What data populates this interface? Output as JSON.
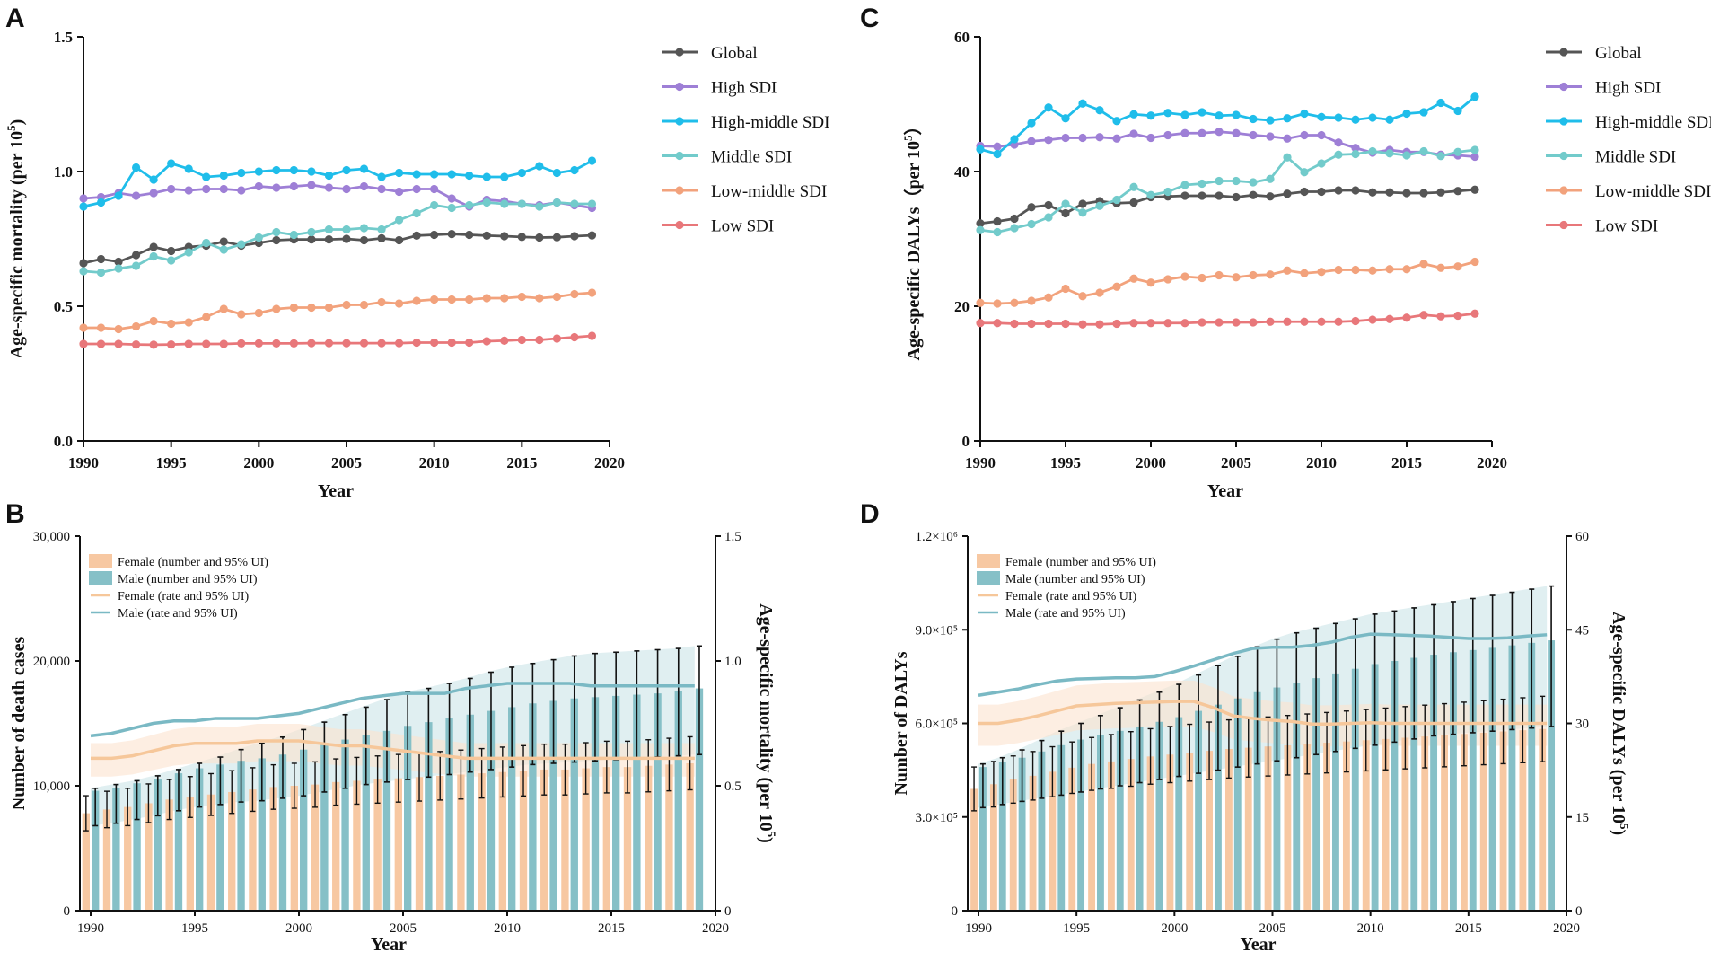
{
  "colors": {
    "Global": "#555555",
    "High SDI": "#9e7fd6",
    "High-middle SDI": "#1fbdea",
    "Middle SDI": "#72cbcb",
    "Low-middle SDI": "#f2a27c",
    "Low SDI": "#e8777a",
    "female_bar": "#f7c8a2",
    "male_bar": "#86c0c7",
    "female_line": "#f6c79a",
    "male_line": "#7ab9c4",
    "female_band": "#fbe3cf",
    "male_band": "#cfe6ea"
  },
  "chart_data": [
    {
      "panel": "A",
      "type": "line",
      "xlabel": "Year",
      "ylabel": "Age-specific mortality (per 10",
      "ylabel_sup": "5",
      "ylabel_tail": ")",
      "xlim": [
        1990,
        2020
      ],
      "ylim": [
        0,
        1.5
      ],
      "x_ticks": [
        "1990",
        "1995",
        "2000",
        "2005",
        "2010",
        "2015",
        "2020"
      ],
      "y_ticks": [
        "0.0",
        "0.5",
        "1.0",
        "1.5"
      ],
      "x": [
        1990,
        1991,
        1992,
        1993,
        1994,
        1995,
        1996,
        1997,
        1998,
        1999,
        2000,
        2001,
        2002,
        2003,
        2004,
        2005,
        2006,
        2007,
        2008,
        2009,
        2010,
        2011,
        2012,
        2013,
        2014,
        2015,
        2016,
        2017,
        2018,
        2019
      ],
      "series": [
        {
          "name": "Global",
          "values": [
            0.66,
            0.675,
            0.665,
            0.69,
            0.72,
            0.705,
            0.72,
            0.725,
            0.74,
            0.725,
            0.735,
            0.745,
            0.748,
            0.748,
            0.748,
            0.75,
            0.745,
            0.752,
            0.745,
            0.762,
            0.765,
            0.768,
            0.765,
            0.762,
            0.76,
            0.757,
            0.755,
            0.756,
            0.76,
            0.763
          ]
        },
        {
          "name": "High SDI",
          "values": [
            0.9,
            0.905,
            0.92,
            0.91,
            0.92,
            0.935,
            0.93,
            0.935,
            0.935,
            0.93,
            0.945,
            0.94,
            0.945,
            0.95,
            0.94,
            0.935,
            0.945,
            0.935,
            0.925,
            0.935,
            0.935,
            0.9,
            0.87,
            0.895,
            0.89,
            0.88,
            0.875,
            0.885,
            0.875,
            0.865
          ]
        },
        {
          "name": "High-middle SDI",
          "values": [
            0.87,
            0.885,
            0.91,
            1.015,
            0.97,
            1.03,
            1.01,
            0.98,
            0.985,
            0.995,
            1.0,
            1.005,
            1.005,
            1.0,
            0.985,
            1.005,
            1.01,
            0.98,
            0.995,
            0.99,
            0.99,
            0.99,
            0.985,
            0.98,
            0.98,
            0.995,
            1.02,
            0.995,
            1.005,
            1.04
          ]
        },
        {
          "name": "Middle SDI",
          "values": [
            0.63,
            0.625,
            0.64,
            0.65,
            0.685,
            0.67,
            0.7,
            0.735,
            0.71,
            0.73,
            0.755,
            0.775,
            0.765,
            0.775,
            0.785,
            0.785,
            0.79,
            0.785,
            0.82,
            0.845,
            0.875,
            0.865,
            0.875,
            0.885,
            0.88,
            0.88,
            0.87,
            0.885,
            0.88,
            0.88
          ]
        },
        {
          "name": "Low-middle SDI",
          "values": [
            0.42,
            0.42,
            0.415,
            0.425,
            0.445,
            0.435,
            0.44,
            0.46,
            0.49,
            0.47,
            0.475,
            0.49,
            0.495,
            0.495,
            0.495,
            0.505,
            0.505,
            0.515,
            0.51,
            0.52,
            0.525,
            0.525,
            0.525,
            0.53,
            0.53,
            0.535,
            0.53,
            0.535,
            0.545,
            0.55
          ]
        },
        {
          "name": "Low SDI",
          "values": [
            0.36,
            0.36,
            0.36,
            0.358,
            0.357,
            0.358,
            0.36,
            0.36,
            0.36,
            0.362,
            0.362,
            0.362,
            0.362,
            0.363,
            0.363,
            0.363,
            0.363,
            0.363,
            0.363,
            0.365,
            0.365,
            0.365,
            0.365,
            0.37,
            0.372,
            0.375,
            0.375,
            0.38,
            0.385,
            0.39
          ]
        }
      ]
    },
    {
      "panel": "C",
      "type": "line",
      "xlabel": "Year",
      "ylabel": "Age-specific DALYs（per 10",
      "ylabel_sup": "5",
      "ylabel_tail": "）",
      "xlim": [
        1990,
        2020
      ],
      "ylim": [
        0,
        60
      ],
      "x_ticks": [
        "1990",
        "1995",
        "2000",
        "2005",
        "2010",
        "2015",
        "2020"
      ],
      "y_ticks": [
        "0",
        "20",
        "40",
        "60"
      ],
      "x": [
        1990,
        1991,
        1992,
        1993,
        1994,
        1995,
        1996,
        1997,
        1998,
        1999,
        2000,
        2001,
        2002,
        2003,
        2004,
        2005,
        2006,
        2007,
        2008,
        2009,
        2010,
        2011,
        2012,
        2013,
        2014,
        2015,
        2016,
        2017,
        2018,
        2019
      ],
      "series": [
        {
          "name": "Global",
          "values": [
            32.3,
            32.6,
            33.0,
            34.7,
            35.0,
            33.8,
            35.2,
            35.6,
            35.3,
            35.4,
            36.2,
            36.3,
            36.4,
            36.4,
            36.4,
            36.2,
            36.5,
            36.3,
            36.7,
            37.0,
            37.0,
            37.2,
            37.2,
            36.9,
            36.9,
            36.8,
            36.8,
            36.9,
            37.1,
            37.3
          ]
        },
        {
          "name": "High SDI",
          "values": [
            43.8,
            43.7,
            44.0,
            44.5,
            44.7,
            45.0,
            45.0,
            45.1,
            44.9,
            45.6,
            45.0,
            45.4,
            45.7,
            45.7,
            45.9,
            45.7,
            45.4,
            45.2,
            44.9,
            45.4,
            45.4,
            44.3,
            43.5,
            42.8,
            43.2,
            42.9,
            42.9,
            42.5,
            42.4,
            42.2
          ]
        },
        {
          "name": "High-middle SDI",
          "values": [
            43.3,
            42.6,
            44.8,
            47.2,
            49.5,
            47.9,
            50.1,
            49.1,
            47.5,
            48.5,
            48.3,
            48.7,
            48.4,
            48.8,
            48.3,
            48.4,
            47.8,
            47.6,
            47.9,
            48.6,
            48.1,
            48.0,
            47.7,
            48.0,
            47.7,
            48.6,
            48.8,
            50.2,
            49.0,
            51.1
          ]
        },
        {
          "name": "Middle SDI",
          "values": [
            31.3,
            31.0,
            31.6,
            32.2,
            33.2,
            35.2,
            33.9,
            34.9,
            35.8,
            37.7,
            36.5,
            37.0,
            38.0,
            38.2,
            38.6,
            38.6,
            38.4,
            38.9,
            42.1,
            39.9,
            41.2,
            42.5,
            42.6,
            43.0,
            42.7,
            42.4,
            43.0,
            42.3,
            42.9,
            43.2
          ]
        },
        {
          "name": "Low-middle SDI",
          "values": [
            20.5,
            20.4,
            20.5,
            20.8,
            21.3,
            22.6,
            21.5,
            22.0,
            22.9,
            24.1,
            23.5,
            24.0,
            24.4,
            24.2,
            24.6,
            24.3,
            24.6,
            24.7,
            25.3,
            24.9,
            25.1,
            25.4,
            25.4,
            25.3,
            25.5,
            25.5,
            26.3,
            25.7,
            25.9,
            26.6
          ]
        },
        {
          "name": "Low SDI",
          "values": [
            17.5,
            17.5,
            17.4,
            17.4,
            17.4,
            17.4,
            17.3,
            17.3,
            17.4,
            17.5,
            17.5,
            17.5,
            17.5,
            17.6,
            17.6,
            17.6,
            17.6,
            17.7,
            17.7,
            17.7,
            17.7,
            17.7,
            17.8,
            18.0,
            18.1,
            18.3,
            18.7,
            18.5,
            18.6,
            18.9
          ]
        }
      ]
    },
    {
      "panel": "B",
      "type": "bar",
      "xlabel": "Year",
      "ylabel_left": "Number of death cases",
      "ylabel_right": "Age-specific mortality (per 10",
      "ylabel_right_sup": "5",
      "ylabel_right_tail": ")",
      "x_ticks": [
        "1990",
        "1995",
        "2000",
        "2005",
        "2010",
        "2015",
        "2020"
      ],
      "y_left_ticks": [
        "0",
        "10,000",
        "20,000",
        "30,000"
      ],
      "y_right_ticks": [
        "0",
        "0.5",
        "1.0",
        "1.5"
      ],
      "ylim_left": [
        0,
        30000
      ],
      "ylim_right": [
        0,
        1.5
      ],
      "legend": [
        "Female (number and 95% UI)",
        "Male (number and 95% UI)",
        "Female (rate and 95% UI)",
        "Male (rate and 95% UI)"
      ],
      "x": [
        1990,
        1991,
        1992,
        1993,
        1994,
        1995,
        1996,
        1997,
        1998,
        1999,
        2000,
        2001,
        2002,
        2003,
        2004,
        2005,
        2006,
        2007,
        2008,
        2009,
        2010,
        2011,
        2012,
        2013,
        2014,
        2015,
        2016,
        2017,
        2018,
        2019
      ],
      "female_number": [
        7800,
        8100,
        8300,
        8600,
        8900,
        9100,
        9300,
        9500,
        9700,
        9900,
        10000,
        10100,
        10300,
        10400,
        10500,
        10600,
        10700,
        10800,
        10900,
        11000,
        11100,
        11200,
        11300,
        11300,
        11400,
        11500,
        11500,
        11600,
        11700,
        11800
      ],
      "male_number": [
        9600,
        9800,
        10200,
        10500,
        11000,
        11400,
        11700,
        12000,
        12200,
        12500,
        12900,
        13300,
        13700,
        14100,
        14400,
        14800,
        15100,
        15400,
        15700,
        16000,
        16300,
        16600,
        16800,
        17000,
        17100,
        17200,
        17300,
        17400,
        17600,
        17800
      ],
      "male_number_upper": [
        9800,
        10100,
        10400,
        10800,
        11300,
        11800,
        12300,
        12900,
        13400,
        13900,
        14500,
        15100,
        15700,
        16300,
        16900,
        17500,
        17800,
        18200,
        18600,
        19100,
        19500,
        19800,
        20100,
        20400,
        20600,
        20700,
        20800,
        20900,
        21000,
        21200
      ],
      "male_number_lower": [
        6800,
        7000,
        7300,
        7600,
        8000,
        8300,
        8500,
        8700,
        8800,
        9000,
        9200,
        9500,
        9800,
        10100,
        10300,
        10500,
        10700,
        10900,
        11100,
        11300,
        11500,
        11700,
        11800,
        11900,
        12000,
        12100,
        12200,
        12300,
        12400,
        12500
      ],
      "female_rate": [
        0.61,
        0.61,
        0.62,
        0.64,
        0.66,
        0.67,
        0.67,
        0.67,
        0.68,
        0.68,
        0.68,
        0.67,
        0.66,
        0.66,
        0.65,
        0.64,
        0.63,
        0.62,
        0.61,
        0.61,
        0.61,
        0.61,
        0.61,
        0.61,
        0.61,
        0.61,
        0.61,
        0.61,
        0.61,
        0.61
      ],
      "male_rate": [
        0.7,
        0.71,
        0.73,
        0.75,
        0.76,
        0.76,
        0.77,
        0.77,
        0.77,
        0.78,
        0.79,
        0.81,
        0.83,
        0.85,
        0.86,
        0.87,
        0.87,
        0.87,
        0.89,
        0.9,
        0.91,
        0.91,
        0.91,
        0.91,
        0.9,
        0.9,
        0.9,
        0.9,
        0.9,
        0.9
      ]
    },
    {
      "panel": "D",
      "type": "bar",
      "xlabel": "Year",
      "ylabel_left": "Number of DALYs",
      "ylabel_right": "Age-specific DALYs (per 10",
      "ylabel_right_sup": "5",
      "ylabel_right_tail": ")",
      "x_ticks": [
        "1990",
        "1995",
        "2000",
        "2005",
        "2010",
        "2015",
        "2020"
      ],
      "y_left_ticks": [
        "0",
        "3.0×10⁵",
        "6.0×10⁵",
        "9.0×10⁵",
        "1.2×10⁶"
      ],
      "y_right_ticks": [
        "0",
        "15",
        "30",
        "45",
        "60"
      ],
      "ylim_left": [
        0,
        1200000
      ],
      "ylim_right": [
        0,
        60
      ],
      "legend": [
        "Female (number and 95% UI)",
        "Male (number and 95% UI)",
        "Female (rate and 95% UI)",
        "Male (rate and 95% UI)"
      ],
      "x": [
        1990,
        1991,
        1992,
        1993,
        1994,
        1995,
        1996,
        1997,
        1998,
        1999,
        2000,
        2001,
        2002,
        2003,
        2004,
        2005,
        2006,
        2007,
        2008,
        2009,
        2010,
        2011,
        2012,
        2013,
        2014,
        2015,
        2016,
        2017,
        2018,
        2019
      ],
      "female_number": [
        390000,
        405000,
        420000,
        432000,
        445000,
        458000,
        470000,
        478000,
        486000,
        494000,
        500000,
        506000,
        512000,
        518000,
        522000,
        526000,
        530000,
        534000,
        538000,
        542000,
        546000,
        550000,
        554000,
        558000,
        562000,
        566000,
        570000,
        574000,
        578000,
        582000
      ],
      "male_number": [
        460000,
        475000,
        490000,
        510000,
        530000,
        548000,
        562000,
        576000,
        590000,
        605000,
        620000,
        640000,
        660000,
        680000,
        700000,
        715000,
        730000,
        745000,
        760000,
        775000,
        790000,
        800000,
        810000,
        820000,
        828000,
        835000,
        842000,
        850000,
        858000,
        866000
      ],
      "male_number_upper": [
        470000,
        490000,
        515000,
        545000,
        575000,
        600000,
        625000,
        650000,
        675000,
        700000,
        725000,
        755000,
        785000,
        815000,
        845000,
        870000,
        890000,
        905000,
        920000,
        935000,
        950000,
        960000,
        970000,
        980000,
        990000,
        1000000,
        1010000,
        1020000,
        1030000,
        1040000
      ],
      "male_number_lower": [
        330000,
        340000,
        350000,
        360000,
        370000,
        380000,
        390000,
        400000,
        410000,
        420000,
        430000,
        440000,
        450000,
        460000,
        470000,
        480000,
        490000,
        500000,
        510000,
        520000,
        530000,
        540000,
        550000,
        560000,
        565000,
        570000,
        575000,
        580000,
        585000,
        590000
      ],
      "female_rate": [
        30,
        30,
        30.5,
        31.2,
        32,
        32.8,
        33,
        33.2,
        33.3,
        33.4,
        33.5,
        33.5,
        32.5,
        31.2,
        30.8,
        30.5,
        30.3,
        29.9,
        29.9,
        30.0,
        30.1,
        30.0,
        30.0,
        30.0,
        30.0,
        30.0,
        30.0,
        30.0,
        30.0,
        30.0
      ],
      "male_rate": [
        34.5,
        35,
        35.5,
        36.2,
        36.8,
        37.1,
        37.2,
        37.3,
        37.3,
        37.5,
        38.3,
        39.2,
        40.2,
        41.2,
        42,
        42.2,
        42.2,
        42.5,
        43,
        43.8,
        44.3,
        44.2,
        44.1,
        44,
        43.8,
        43.6,
        43.6,
        43.7,
        44,
        44.2
      ]
    }
  ]
}
